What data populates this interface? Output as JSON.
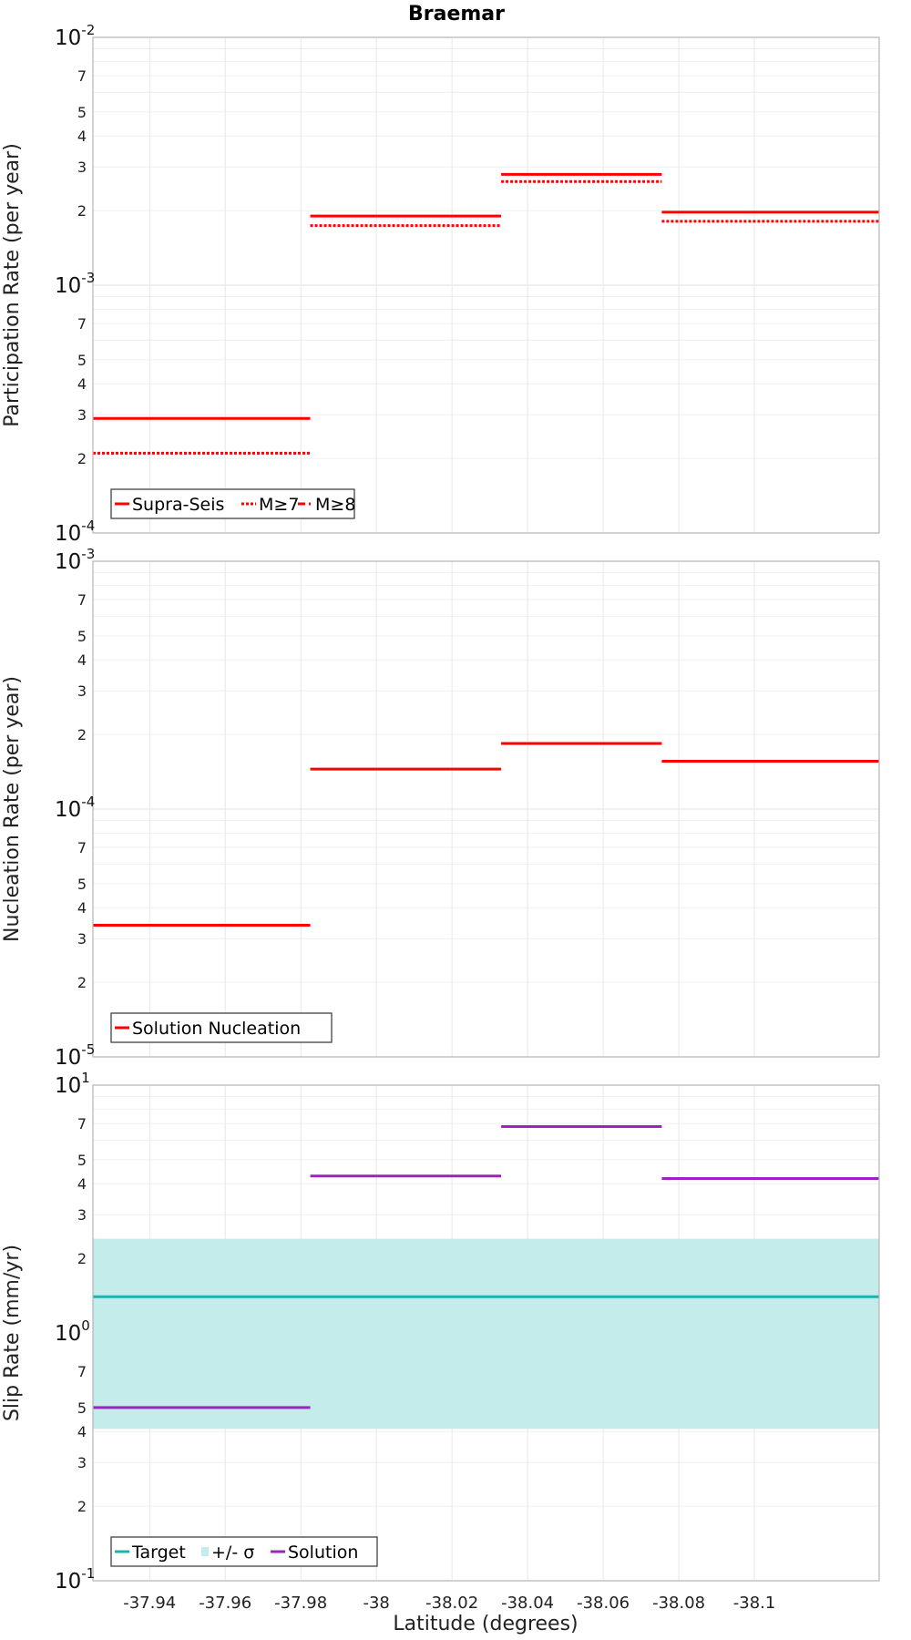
{
  "chart_data": [
    {
      "type": "line",
      "title": "Braemar",
      "ylabel": "Participation Rate (per year)",
      "yscale": "log",
      "ylim": [
        0.0001,
        0.01
      ],
      "xlim": [
        -37.925,
        -38.133
      ],
      "x_reversed": true,
      "grid": true,
      "legend_position": "bottom-left",
      "series": [
        {
          "name": "Supra-Seis",
          "color": "#ff0000",
          "style": "solid",
          "segments": [
            {
              "x": [
                -37.925,
                -37.9825
              ],
              "y": 0.00029
            },
            {
              "x": [
                -37.9825,
                -38.033
              ],
              "y": 0.0019
            },
            {
              "x": [
                -38.033,
                -38.0755
              ],
              "y": 0.0028
            },
            {
              "x": [
                -38.0755,
                -38.133
              ],
              "y": 0.00197
            }
          ]
        },
        {
          "name": "M≥7",
          "color": "#ff0000",
          "style": "dotted",
          "segments": [
            {
              "x": [
                -37.925,
                -37.9825
              ],
              "y": 0.00021
            },
            {
              "x": [
                -37.9825,
                -38.033
              ],
              "y": 0.00174
            },
            {
              "x": [
                -38.033,
                -38.0755
              ],
              "y": 0.00262
            },
            {
              "x": [
                -38.0755,
                -38.133
              ],
              "y": 0.00181
            }
          ]
        },
        {
          "name": "M≥8",
          "color": "#ff0000",
          "style": "dashdot",
          "segments": []
        }
      ]
    },
    {
      "type": "line",
      "ylabel": "Nucleation Rate (per year)",
      "yscale": "log",
      "ylim": [
        1e-05,
        0.001
      ],
      "xlim": [
        -37.925,
        -38.133
      ],
      "x_reversed": true,
      "grid": true,
      "legend_position": "bottom-left",
      "series": [
        {
          "name": "Solution Nucleation",
          "color": "#ff0000",
          "style": "solid",
          "segments": [
            {
              "x": [
                -37.925,
                -37.9825
              ],
              "y": 3.4e-05
            },
            {
              "x": [
                -37.9825,
                -38.033
              ],
              "y": 0.000145
            },
            {
              "x": [
                -38.033,
                -38.0755
              ],
              "y": 0.000184
            },
            {
              "x": [
                -38.0755,
                -38.133
              ],
              "y": 0.000156
            }
          ]
        }
      ]
    },
    {
      "type": "line",
      "ylabel": "Slip Rate (mm/yr)",
      "xlabel": "Latitude (degrees)",
      "yscale": "log",
      "ylim": [
        0.1,
        10
      ],
      "xlim": [
        -37.925,
        -38.133
      ],
      "x_reversed": true,
      "xticks": [
        -37.94,
        -37.96,
        -37.98,
        -38,
        -38.02,
        -38.04,
        -38.06,
        -38.08,
        -38.1
      ],
      "xtick_labels": [
        "-37.94",
        "-37.96",
        "-37.98",
        "-38",
        "-38.02",
        "-38.04",
        "-38.06",
        "-38.08",
        "-38.1"
      ],
      "grid": true,
      "legend_position": "bottom-left",
      "band": {
        "name": "+/- σ",
        "color": "#c3ecea",
        "y_low": 0.41,
        "y_high": 2.4,
        "x": [
          -37.925,
          -38.133
        ]
      },
      "series": [
        {
          "name": "Target",
          "color": "#1ab3b3",
          "style": "solid",
          "segments": [
            {
              "x": [
                -37.925,
                -38.133
              ],
              "y": 1.4
            }
          ]
        },
        {
          "name": "Solution",
          "color": "#a020c0",
          "style": "solid",
          "segments": [
            {
              "x": [
                -37.925,
                -37.9825
              ],
              "y": 0.5
            },
            {
              "x": [
                -37.9825,
                -38.033
              ],
              "y": 4.3
            },
            {
              "x": [
                -38.033,
                -38.0755
              ],
              "y": 6.8
            },
            {
              "x": [
                -38.0755,
                -38.133
              ],
              "y": 4.2
            }
          ]
        }
      ]
    }
  ]
}
